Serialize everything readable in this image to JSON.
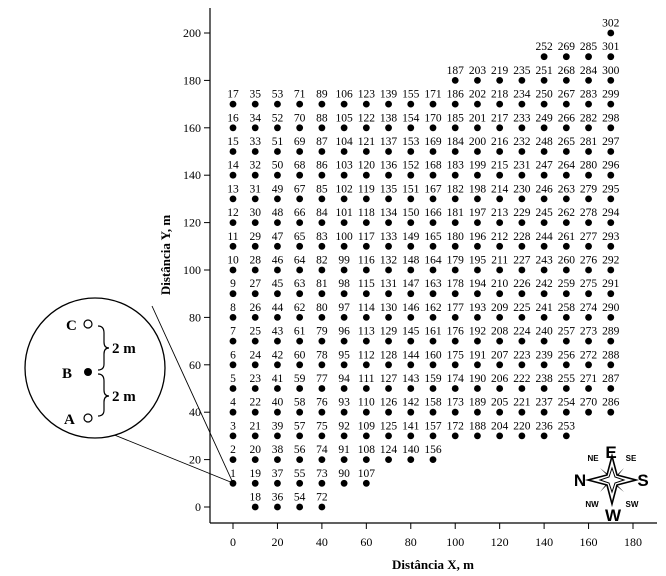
{
  "chart_data": {
    "type": "scatter",
    "xlabel": "Distância X, m",
    "ylabel": "Distância Y, m",
    "xlim": [
      0,
      180
    ],
    "ylim": [
      0,
      210
    ],
    "x_ticks": [
      0,
      20,
      40,
      60,
      80,
      100,
      120,
      140,
      160,
      180
    ],
    "y_ticks": [
      0,
      20,
      40,
      60,
      80,
      100,
      120,
      140,
      160,
      180,
      200
    ],
    "grid": false,
    "column_x": [
      0,
      10,
      20,
      30,
      40,
      50,
      60,
      70,
      80,
      90,
      100,
      110,
      120,
      130,
      140,
      150,
      160,
      170
    ],
    "row_y": [
      0,
      10,
      20,
      30,
      40,
      50,
      60,
      70,
      80,
      90,
      100,
      110,
      120,
      130,
      140,
      150,
      160,
      170,
      180,
      190,
      200
    ],
    "columns": [
      {
        "x": 0,
        "ids": [
          1,
          2,
          3,
          4,
          5,
          6,
          7,
          8,
          9,
          10,
          11,
          12,
          13,
          14,
          15,
          16,
          17
        ],
        "y_start": 10
      },
      {
        "x": 10,
        "ids": [
          18,
          19,
          20,
          21,
          22,
          23,
          24,
          25,
          26,
          27,
          28,
          29,
          30,
          31,
          32,
          33,
          34,
          35
        ],
        "y_start": 0
      },
      {
        "x": 20,
        "ids": [
          36,
          37,
          38,
          39,
          40,
          41,
          42,
          43,
          44,
          45,
          46,
          47,
          48,
          49,
          50,
          51,
          52,
          53
        ],
        "y_start": 0
      },
      {
        "x": 30,
        "ids": [
          54,
          55,
          56,
          57,
          58,
          59,
          60,
          61,
          62,
          63,
          64,
          65,
          66,
          67,
          68,
          69,
          70,
          71
        ],
        "y_start": 0
      },
      {
        "x": 40,
        "ids": [
          72,
          73,
          74,
          75,
          76,
          77,
          78,
          79,
          80,
          81,
          82,
          83,
          84,
          85,
          86,
          87,
          88,
          89
        ],
        "y_start": 0
      },
      {
        "x": 50,
        "ids": [
          90,
          91,
          92,
          93,
          94,
          95,
          96,
          97,
          98,
          99,
          100,
          101,
          102,
          103,
          104,
          105,
          106
        ],
        "y_start": 10
      },
      {
        "x": 60,
        "ids": [
          107,
          108,
          109,
          110,
          111,
          112,
          113,
          114,
          115,
          116,
          117,
          118,
          119,
          120,
          121,
          122,
          123
        ],
        "y_start": 10
      },
      {
        "x": 70,
        "ids": [
          124,
          125,
          126,
          127,
          128,
          129,
          130,
          131,
          132,
          133,
          134,
          135,
          136,
          137,
          138,
          139
        ],
        "y_start": 20
      },
      {
        "x": 80,
        "ids": [
          140,
          141,
          142,
          143,
          144,
          145,
          146,
          147,
          148,
          149,
          150,
          151,
          152,
          153,
          154,
          155
        ],
        "y_start": 20
      },
      {
        "x": 90,
        "ids": [
          156,
          157,
          158,
          159,
          160,
          161,
          162,
          163,
          164,
          165,
          166,
          167,
          168,
          169,
          170,
          171
        ],
        "y_start": 20
      },
      {
        "x": 100,
        "ids": [
          172,
          173,
          174,
          175,
          176,
          177,
          178,
          179,
          180,
          181,
          182,
          183,
          184,
          185,
          186,
          187
        ],
        "y_start": 30
      },
      {
        "x": 110,
        "ids": [
          188,
          189,
          190,
          191,
          192,
          193,
          194,
          195,
          196,
          197,
          198,
          199,
          200,
          201,
          202,
          203
        ],
        "y_start": 30
      },
      {
        "x": 120,
        "ids": [
          204,
          205,
          206,
          207,
          208,
          209,
          210,
          211,
          212,
          213,
          214,
          215,
          216,
          217,
          218,
          219
        ],
        "y_start": 30
      },
      {
        "x": 130,
        "ids": [
          220,
          221,
          222,
          223,
          224,
          225,
          226,
          227,
          228,
          229,
          230,
          231,
          232,
          233,
          234,
          235
        ],
        "y_start": 30
      },
      {
        "x": 140,
        "ids": [
          236,
          237,
          238,
          239,
          240,
          241,
          242,
          243,
          244,
          245,
          246,
          247,
          248,
          249,
          250,
          251,
          252
        ],
        "y_start": 30
      },
      {
        "x": 150,
        "ids": [
          253,
          254,
          255,
          256,
          257,
          258,
          259,
          260,
          261,
          262,
          263,
          264,
          265,
          266,
          267,
          268,
          269
        ],
        "y_start": 30
      },
      {
        "x": 160,
        "ids": [
          270,
          271,
          272,
          273,
          274,
          275,
          276,
          277,
          278,
          279,
          280,
          281,
          282,
          283,
          284,
          285
        ],
        "y_start": 40
      },
      {
        "x": 170,
        "ids": [
          286,
          287,
          288,
          289,
          290,
          291,
          292,
          293,
          294,
          295,
          296,
          297,
          298,
          299,
          300,
          301,
          302
        ],
        "y_start": 40
      }
    ]
  },
  "inset": {
    "label_c": "C",
    "label_b": "B",
    "label_a": "A",
    "spacing_upper": "2 m",
    "spacing_lower": "2 m"
  },
  "compass": {
    "n": "N",
    "e": "E",
    "s": "S",
    "w": "W",
    "ne": "NE",
    "se": "SE",
    "sw": "SW",
    "nw": "NW"
  }
}
